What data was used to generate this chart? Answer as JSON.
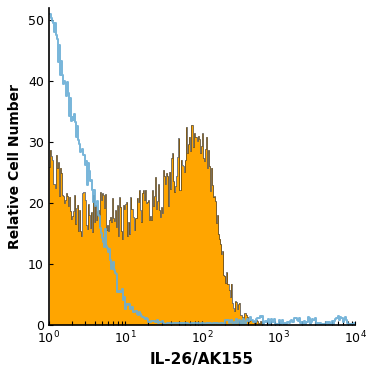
{
  "title": "",
  "xlabel": "IL-26/AK155",
  "ylabel": "Relative Cell Number",
  "xlim": [
    1.0,
    10000.0
  ],
  "ylim": [
    0,
    52
  ],
  "yticks": [
    0,
    10,
    20,
    30,
    40,
    50
  ],
  "background_color": "#ffffff",
  "orange_color": "#FFA500",
  "blue_color": "#6aaed6",
  "dark_line_color": "#222222",
  "seed": 12345,
  "n_bins": 300
}
